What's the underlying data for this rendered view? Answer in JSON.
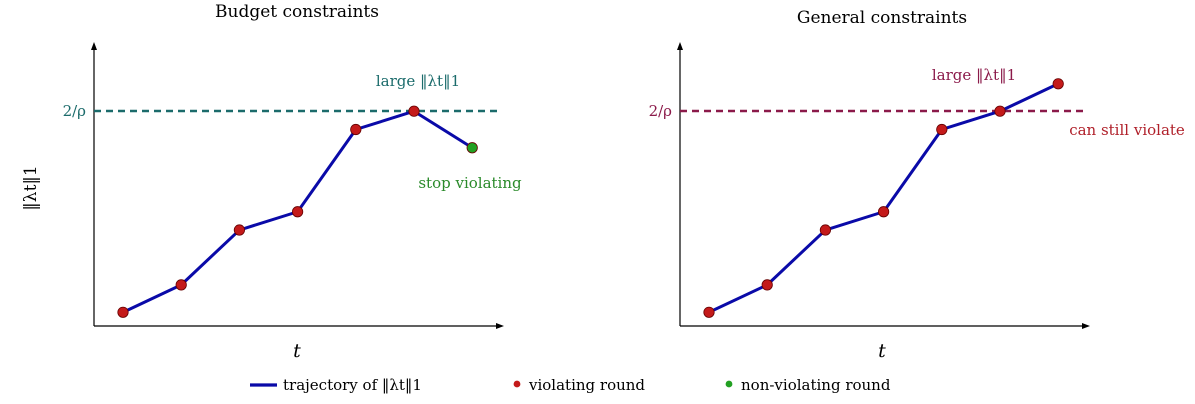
{
  "panels": [
    {
      "title": "Budget constraints",
      "xlabel": "t",
      "threshold_label": "2/ρ",
      "threshold_color": "#1b6b6b",
      "threshold_value": 4.7,
      "points": [
        {
          "t": 1,
          "v": 0.3,
          "type": "violating"
        },
        {
          "t": 2,
          "v": 0.9,
          "type": "violating"
        },
        {
          "t": 3,
          "v": 2.1,
          "type": "violating"
        },
        {
          "t": 4,
          "v": 2.5,
          "type": "violating"
        },
        {
          "t": 5,
          "v": 4.3,
          "type": "violating"
        },
        {
          "t": 6,
          "v": 4.7,
          "type": "violating"
        },
        {
          "t": 7,
          "v": 3.9,
          "type": "non-violating"
        }
      ],
      "annotations": [
        {
          "text": "large ‖λt‖1",
          "color": "#1b6b6b"
        },
        {
          "text": "stop violating",
          "color": "#2a8a2a"
        }
      ]
    },
    {
      "title": "General constraints",
      "xlabel": "t",
      "threshold_label": "2/ρ",
      "threshold_color": "#8b1a4a",
      "threshold_value": 4.7,
      "points": [
        {
          "t": 1,
          "v": 0.3,
          "type": "violating"
        },
        {
          "t": 2,
          "v": 0.9,
          "type": "violating"
        },
        {
          "t": 3,
          "v": 2.1,
          "type": "violating"
        },
        {
          "t": 4,
          "v": 2.5,
          "type": "violating"
        },
        {
          "t": 5,
          "v": 4.3,
          "type": "violating"
        },
        {
          "t": 6,
          "v": 4.7,
          "type": "violating"
        },
        {
          "t": 7,
          "v": 5.3,
          "type": "violating"
        }
      ],
      "annotations": [
        {
          "text": "large ‖λt‖1",
          "color": "#8b1a4a"
        },
        {
          "text": "can still violate",
          "color": "#b0202a"
        }
      ]
    }
  ],
  "ylabel": "‖λt‖1",
  "legend": {
    "trajectory": "trajectory of ‖λt‖1",
    "violating": "violating round",
    "non_violating": "non-violating round"
  },
  "colors": {
    "trajectory": "#0a0aa8",
    "violating": "#c41a1a",
    "non_violating": "#22a022",
    "axis": "#000000"
  }
}
